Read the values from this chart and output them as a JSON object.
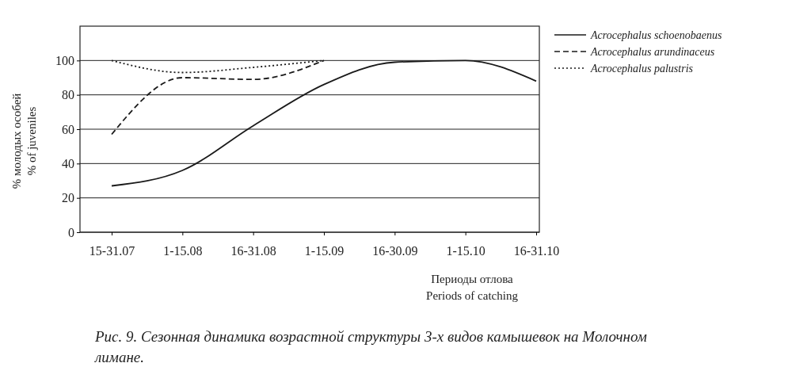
{
  "chart_data": {
    "type": "line",
    "xlabel": "Периоды отлова\nPeriods of catching",
    "ylabel": "% молодых особей\n% of juveniles",
    "categories": [
      "15-31.07",
      "1-15.08",
      "16-31.08",
      "1-15.09",
      "16-30.09",
      "1-15.10",
      "16-31.10"
    ],
    "series": [
      {
        "name": "Acrocephalus schoenobaenus",
        "color": "#1a1a1a",
        "line_style": "solid",
        "values": [
          27,
          36,
          62,
          86,
          99,
          100,
          88
        ]
      },
      {
        "name": "Acrocephalus arundinaceus",
        "color": "#1a1a1a",
        "line_style": "dashed",
        "values": [
          57,
          90,
          89,
          100,
          null,
          null,
          null
        ]
      },
      {
        "name": "Acrocephalus palustris",
        "color": "#1a1a1a",
        "line_style": "dotted",
        "values": [
          100,
          93,
          96,
          100,
          null,
          null,
          null
        ]
      }
    ],
    "ylim": [
      0,
      120
    ],
    "yticks": [
      0,
      20,
      40,
      60,
      80,
      100
    ],
    "grid": "y",
    "legend": "top right",
    "marker": "none",
    "annotations": [
      "Рис. 9. Сезонная динамика возрастной структуры 3-х видов камышевок на Молочном лимане."
    ]
  }
}
